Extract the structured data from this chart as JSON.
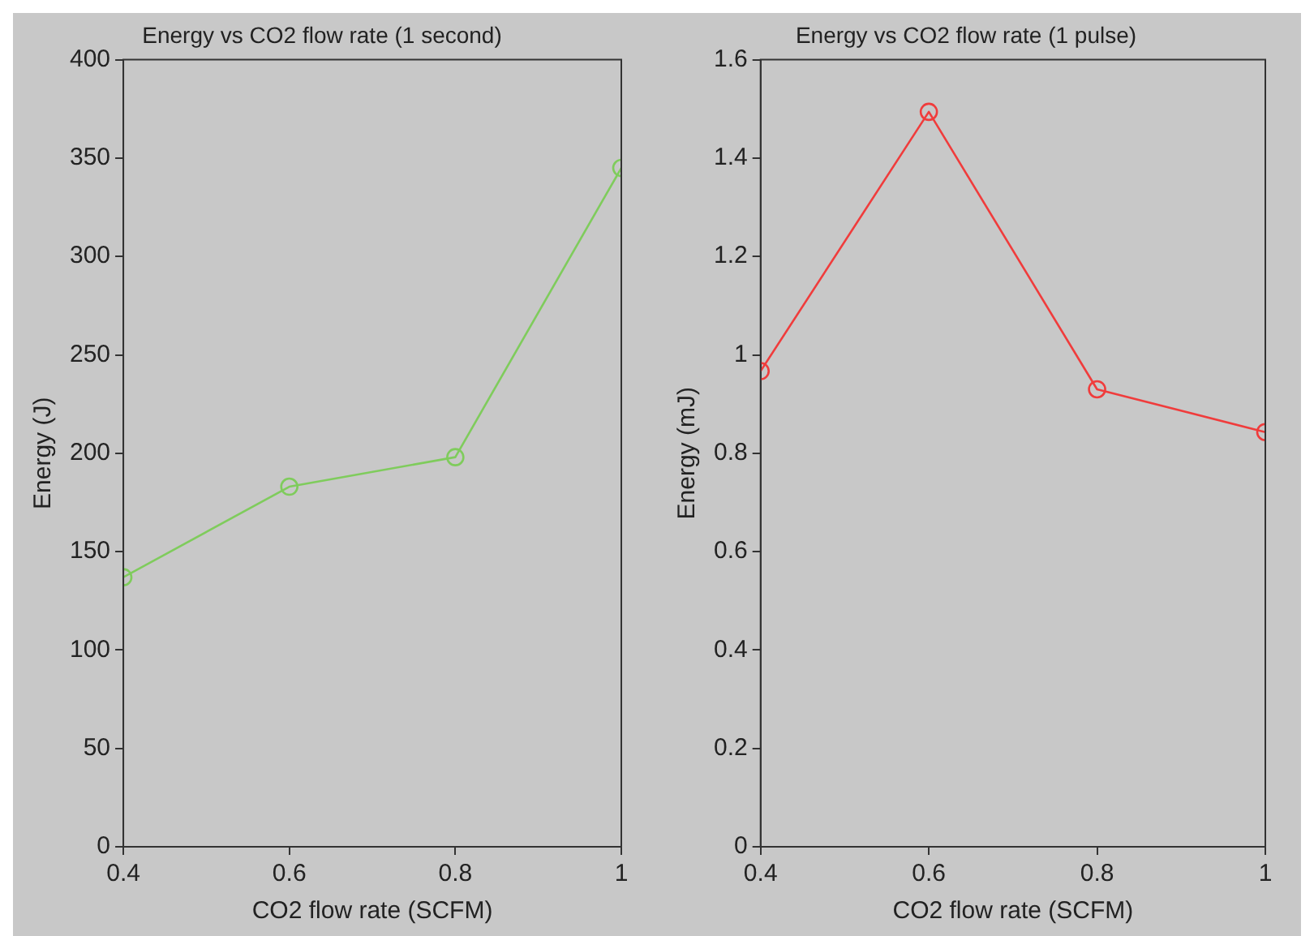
{
  "chart_data": [
    {
      "type": "line",
      "title": "Energy vs CO2 flow rate (1 second)",
      "xlabel": "CO2 flow rate (SCFM)",
      "ylabel": "Energy (J)",
      "x": [
        0.4,
        0.6,
        0.8,
        1
      ],
      "series": [
        {
          "color": "#7fcc5c",
          "values": [
            137,
            183,
            198,
            345
          ]
        }
      ],
      "xlim": [
        0.4,
        1
      ],
      "xticks": [
        0.4,
        0.6,
        0.8,
        1
      ],
      "ylim": [
        0,
        400
      ],
      "yticks": [
        0,
        50,
        100,
        150,
        200,
        250,
        300,
        350,
        400
      ],
      "marker": "circle",
      "line_style": "solid",
      "grid": false,
      "legend": false
    },
    {
      "type": "line",
      "title": "Energy vs CO2 flow rate (1 pulse)",
      "xlabel": "CO2 flow rate (SCFM)",
      "ylabel": "Energy (mJ)",
      "x": [
        0.4,
        0.6,
        0.8,
        1
      ],
      "series": [
        {
          "color": "#f03c3c",
          "values": [
            0.967,
            1.494,
            0.93,
            0.843
          ]
        }
      ],
      "xlim": [
        0.4,
        1
      ],
      "xticks": [
        0.4,
        0.6,
        0.8,
        1
      ],
      "ylim": [
        0,
        1.6
      ],
      "yticks": [
        0,
        0.2,
        0.4,
        0.6,
        0.8,
        1,
        1.2,
        1.4,
        1.6
      ],
      "marker": "circle",
      "line_style": "solid",
      "grid": false,
      "legend": false
    }
  ]
}
